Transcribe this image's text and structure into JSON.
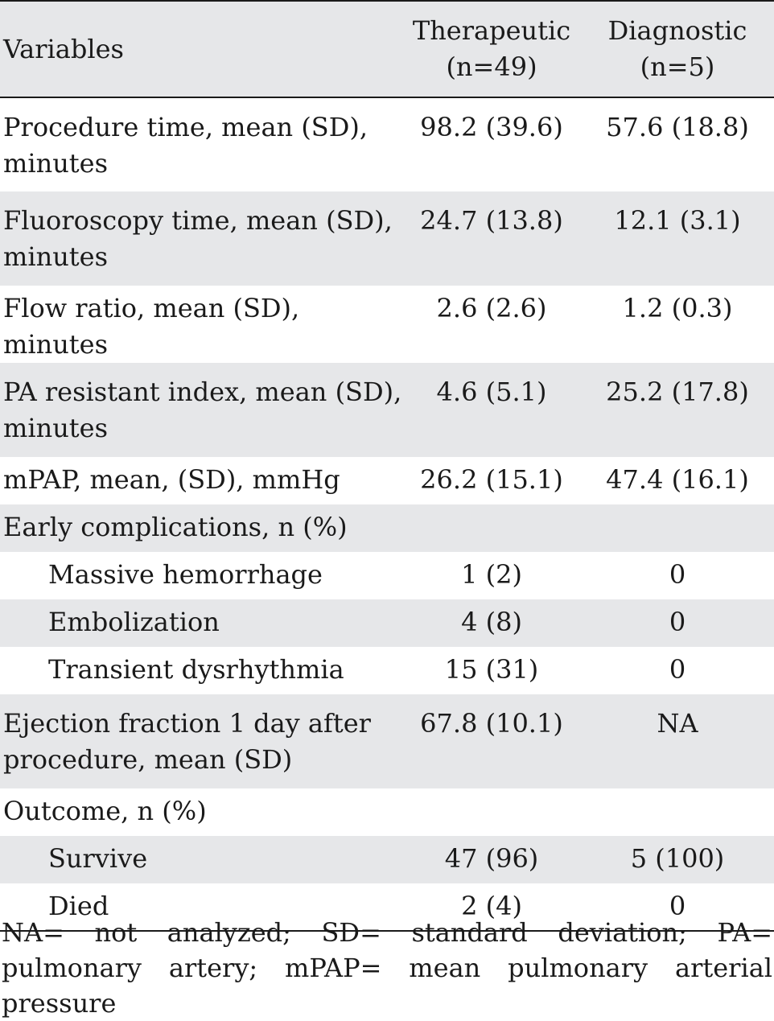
{
  "table": {
    "headers": {
      "variables": "Variables",
      "therapeutic_line1": "Therapeutic",
      "therapeutic_line2": "(n=49)",
      "diagnostic_line1": "Diagnostic",
      "diagnostic_line2": "(n=5)"
    },
    "rows": [
      {
        "label_line1": "Procedure time, mean (SD),",
        "label_line2": "minutes",
        "therapeutic": "98.2 (39.6)",
        "diagnostic": "57.6 (18.8)"
      },
      {
        "label_line1": "Fluoroscopy time, mean (SD),",
        "label_line2": "minutes",
        "therapeutic": "24.7 (13.8)",
        "diagnostic": "12.1 (3.1)"
      },
      {
        "label": "Flow ratio, mean (SD), minutes",
        "therapeutic": "2.6 (2.6)",
        "diagnostic": "1.2 (0.3)"
      },
      {
        "label_line1": "PA resistant index, mean (SD),",
        "label_line2": "minutes",
        "therapeutic": "4.6 (5.1)",
        "diagnostic": "25.2 (17.8)"
      },
      {
        "label": "mPAP, mean, (SD), mmHg",
        "therapeutic": "26.2 (15.1)",
        "diagnostic": "47.4 (16.1)"
      },
      {
        "label": "Early complications, n (%)",
        "therapeutic": "",
        "diagnostic": ""
      },
      {
        "label": "Massive hemorrhage",
        "therapeutic": "1 (2)",
        "diagnostic": "0"
      },
      {
        "label": "Embolization",
        "therapeutic": "4 (8)",
        "diagnostic": "0"
      },
      {
        "label": "Transient dysrhythmia",
        "therapeutic": "15 (31)",
        "diagnostic": "0"
      },
      {
        "label_line1": "Ejection fraction 1 day after",
        "label_line2": "procedure, mean (SD)",
        "therapeutic": "67.8 (10.1)",
        "diagnostic": "NA"
      },
      {
        "label": "Outcome, n (%)",
        "therapeutic": "",
        "diagnostic": ""
      },
      {
        "label": "Survive",
        "therapeutic": "47 (96)",
        "diagnostic": "5 (100)"
      },
      {
        "label": "Died",
        "therapeutic": "2 (4)",
        "diagnostic": "0"
      }
    ]
  },
  "footnote": "NA= not analyzed; SD= standard deviation; PA= pulmonary artery; mPAP= mean pulmonary arterial pressure",
  "colors": {
    "row_shade": "#e6e7e9",
    "text": "#1a1a1a",
    "rule": "#1a1a1a"
  }
}
